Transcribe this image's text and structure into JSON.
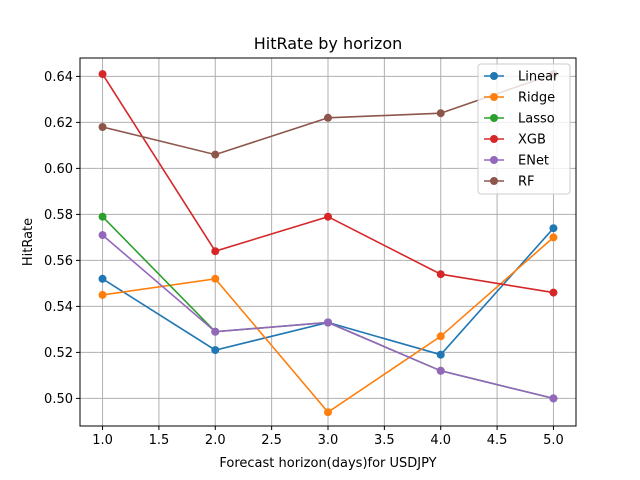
{
  "chart_data": {
    "type": "line",
    "title": "HitRate by horizon",
    "xlabel": "Forecast horizon(days)for USDJPY",
    "ylabel": "HitRate",
    "x": [
      1.0,
      2.0,
      3.0,
      4.0,
      5.0
    ],
    "xlim": [
      0.8,
      5.2
    ],
    "ylim": [
      0.488,
      0.648
    ],
    "xticks": [
      1.0,
      1.5,
      2.0,
      2.5,
      3.0,
      3.5,
      4.0,
      4.5,
      5.0
    ],
    "xtick_labels": [
      "1.0",
      "1.5",
      "2.0",
      "2.5",
      "3.0",
      "3.5",
      "4.0",
      "4.5",
      "5.0"
    ],
    "yticks": [
      0.5,
      0.52,
      0.54,
      0.56,
      0.58,
      0.6,
      0.62,
      0.64
    ],
    "ytick_labels": [
      "0.50",
      "0.52",
      "0.54",
      "0.56",
      "0.58",
      "0.60",
      "0.62",
      "0.64"
    ],
    "grid": true,
    "legend_position": "top-right",
    "series": [
      {
        "name": "Linear",
        "color": "#1f77b4",
        "values": [
          0.552,
          0.521,
          0.533,
          0.519,
          0.574
        ]
      },
      {
        "name": "Ridge",
        "color": "#ff7f0e",
        "values": [
          0.545,
          0.552,
          0.494,
          0.527,
          0.57
        ]
      },
      {
        "name": "Lasso",
        "color": "#2ca02c",
        "values": [
          0.579,
          0.529,
          0.533,
          0.512,
          0.5
        ]
      },
      {
        "name": "XGB",
        "color": "#d62728",
        "values": [
          0.641,
          0.564,
          0.579,
          0.554,
          0.546
        ]
      },
      {
        "name": "ENet",
        "color": "#9467bd",
        "values": [
          0.571,
          0.529,
          0.533,
          0.512,
          0.5
        ]
      },
      {
        "name": "RF",
        "color": "#8c564b",
        "values": [
          0.618,
          0.606,
          0.622,
          0.624,
          0.641
        ]
      }
    ]
  }
}
